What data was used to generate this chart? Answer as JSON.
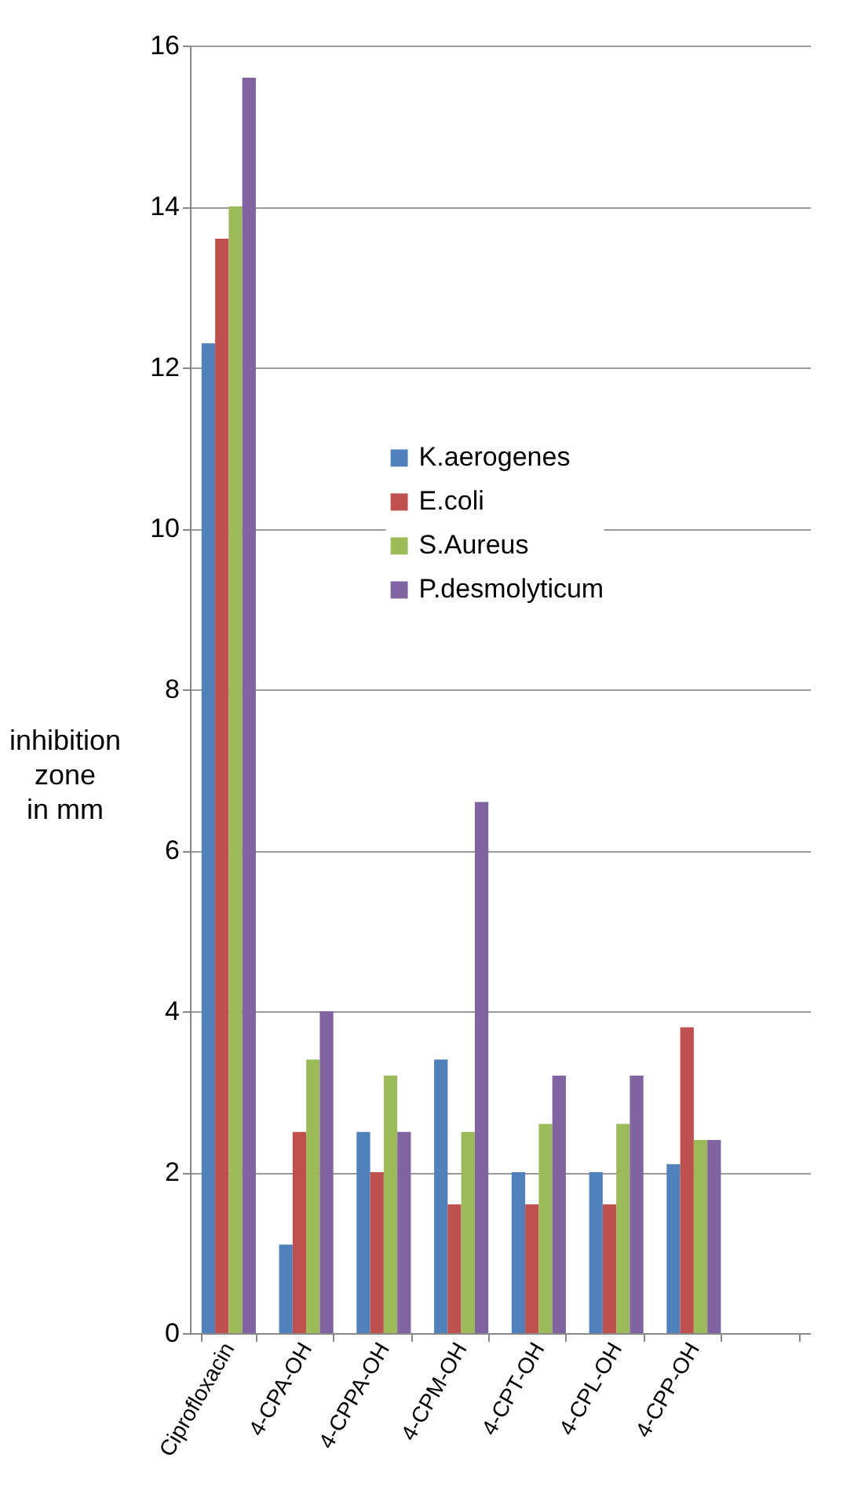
{
  "chart_data": {
    "type": "bar",
    "ylabel": "inhibition zone in mm",
    "categories": [
      "Ciprofloxacin",
      "4-CPA-OH",
      "4-CPPA-OH",
      "4-CPM-OH",
      "4-CPT-OH",
      "4-CPL-OH",
      "4-CPP-OH",
      null
    ],
    "series": [
      {
        "name": "K.aerogenes",
        "color": "#4f81bd",
        "values": [
          12.3,
          1.1,
          2.5,
          3.4,
          2.0,
          2.0,
          2.1,
          null
        ]
      },
      {
        "name": "E.coli",
        "color": "#c0504d",
        "values": [
          13.6,
          2.5,
          2.0,
          1.6,
          1.6,
          1.6,
          3.8,
          null
        ]
      },
      {
        "name": "S.Aureus",
        "color": "#9bbb59",
        "values": [
          14.0,
          3.4,
          3.2,
          2.5,
          2.6,
          2.6,
          2.4,
          null
        ]
      },
      {
        "name": "P.desmolyticum",
        "color": "#8064a2",
        "values": [
          15.6,
          4.0,
          2.5,
          6.6,
          3.2,
          3.2,
          2.4,
          null
        ]
      }
    ],
    "ylim": [
      0,
      16
    ],
    "yticks": [
      0,
      2,
      4,
      6,
      8,
      10,
      12,
      14,
      16
    ],
    "grid": "y",
    "legend": "right"
  }
}
